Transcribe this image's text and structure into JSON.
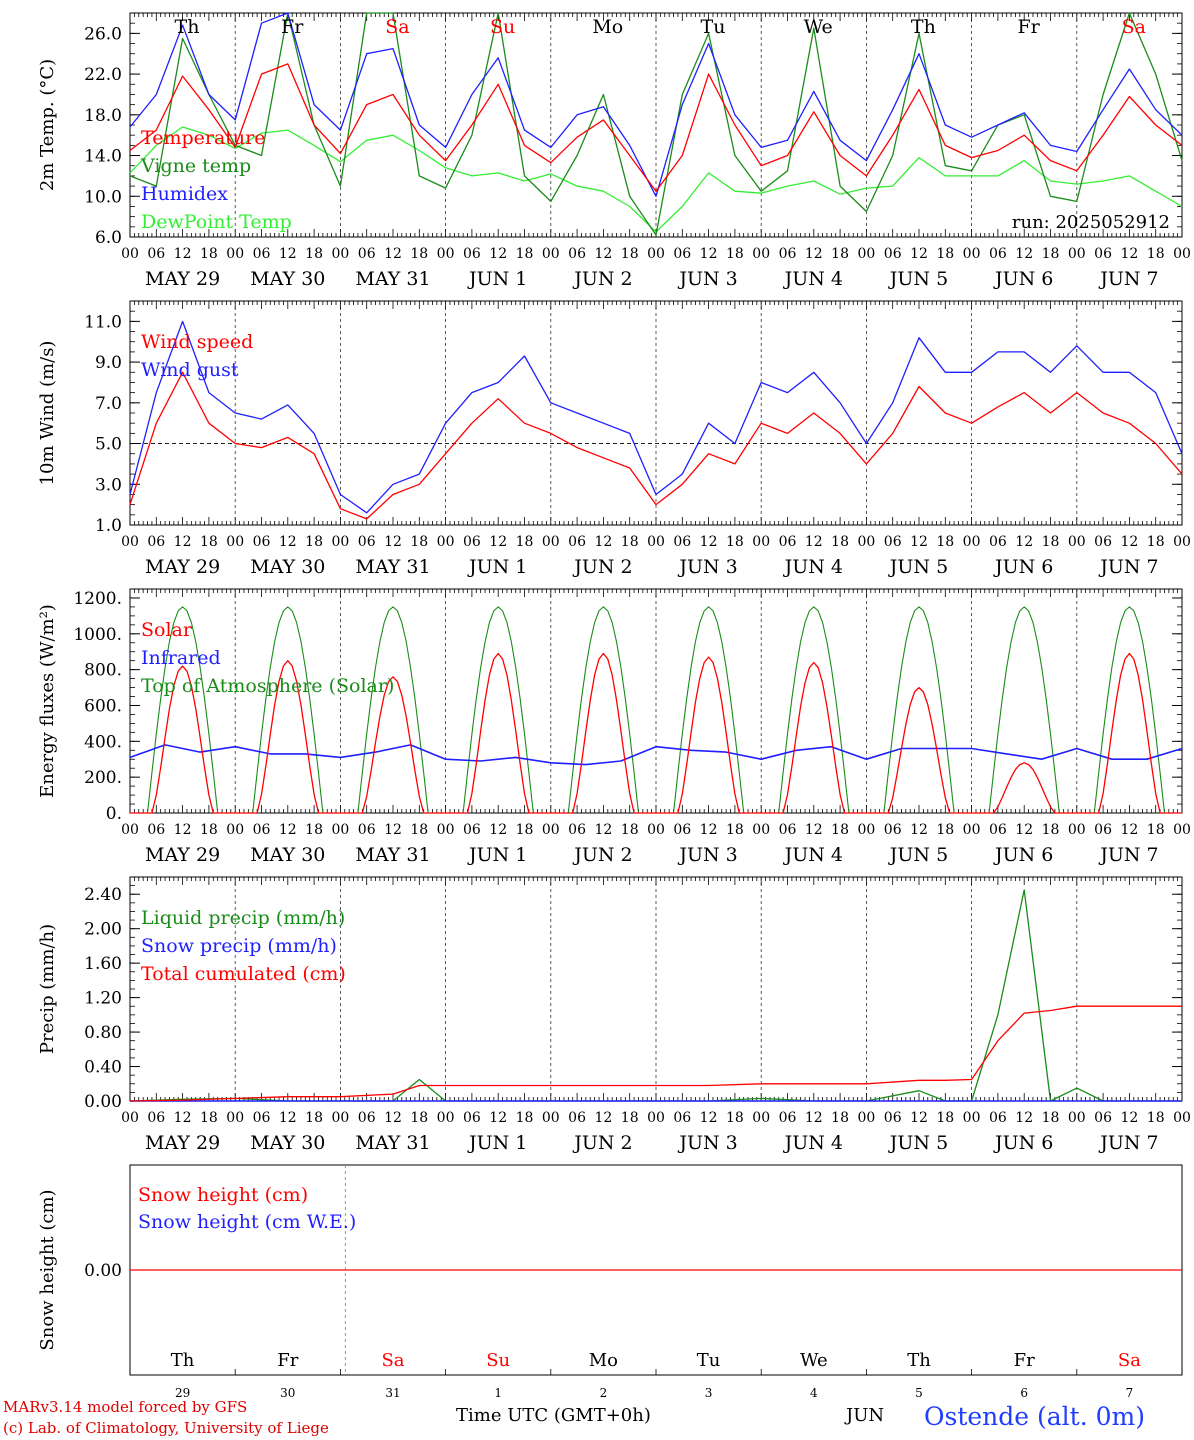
{
  "run_label": "run: 2025052912",
  "hour_ticks": [
    "00",
    "06",
    "12",
    "18"
  ],
  "last_hour_tick": "00",
  "dates": [
    "MAY 29",
    "MAY 30",
    "MAY 31",
    "JUN  1",
    "JUN  2",
    "JUN  3",
    "JUN  4",
    "JUN  5",
    "JUN  6",
    "JUN  7"
  ],
  "weekdays": [
    "Th",
    "Fr",
    "Sa",
    "Su",
    "Mo",
    "Tu",
    "We",
    "Th",
    "Fr",
    "Sa"
  ],
  "weekend_flags": [
    false,
    false,
    true,
    true,
    false,
    false,
    false,
    false,
    false,
    true
  ],
  "day_numbers": [
    "29",
    "30",
    "31",
    "1",
    "2",
    "3",
    "4",
    "5",
    "6",
    "7"
  ],
  "bottom_month": "JUN",
  "x_axis_title": "Time UTC (GMT+0h)",
  "footer": {
    "model": "MARv3.14 model forced by GFS",
    "credit": "(c) Lab. of Climatology, University of Liege",
    "station": "Ostende (alt. 0m)"
  },
  "colors": {
    "red": "#ff0000",
    "green": "#1a8c1a",
    "blue": "#1f1fff",
    "lightgreen": "#33ee33",
    "weekend": "#ff0000"
  },
  "chart_data": [
    {
      "type": "line",
      "ylabel": "2m Temp. (°C)",
      "ylim": [
        6,
        28
      ],
      "yticks": [
        6,
        10,
        14,
        18,
        22,
        26
      ],
      "ytick_labels": [
        "6.0",
        "10.0",
        "14.0",
        "18.0",
        "22.0",
        "26.0"
      ],
      "x": [
        0,
        6,
        12,
        18,
        24,
        30,
        36,
        42,
        48,
        54,
        60,
        66,
        72,
        78,
        84,
        90,
        96,
        102,
        108,
        114,
        120,
        126,
        132,
        138,
        144,
        150,
        156,
        162,
        168,
        174,
        180,
        186,
        192,
        198,
        204,
        210,
        216,
        222,
        228,
        234,
        240
      ],
      "series": [
        {
          "name": "Temperature",
          "color": "red",
          "values": [
            14.5,
            16.5,
            21.8,
            18.5,
            14.8,
            22.0,
            23.0,
            17.0,
            14.2,
            19.0,
            20.0,
            16.0,
            13.5,
            17.0,
            21.0,
            15.0,
            13.3,
            15.8,
            17.5,
            14.0,
            10.5,
            14.0,
            22.0,
            17.0,
            13.0,
            14.0,
            18.3,
            14.0,
            12.0,
            16.0,
            20.5,
            15.0,
            13.8,
            14.5,
            16.0,
            13.5,
            12.5,
            16.0,
            19.8,
            17.0,
            15.0
          ]
        },
        {
          "name": "Vigne temp",
          "color": "green",
          "values": [
            12.0,
            11.0,
            25.5,
            20.0,
            15.0,
            14.0,
            28.0,
            17.0,
            11.0,
            28.0,
            28.0,
            12.0,
            10.8,
            16.0,
            28.0,
            12.0,
            9.5,
            14.0,
            20.0,
            10.0,
            6.2,
            20.0,
            26.0,
            14.0,
            10.5,
            12.5,
            26.5,
            11.0,
            8.5,
            14.0,
            26.0,
            13.0,
            12.5,
            17.0,
            18.0,
            10.0,
            9.5,
            20.0,
            28.0,
            22.0,
            13.5
          ]
        },
        {
          "name": "Humidex",
          "color": "blue",
          "values": [
            16.8,
            20.0,
            26.8,
            20.0,
            17.5,
            27.0,
            28.0,
            19.0,
            16.5,
            24.0,
            24.5,
            17.0,
            14.8,
            20.0,
            23.6,
            16.5,
            14.8,
            18.0,
            18.8,
            15.0,
            10.0,
            19.0,
            25.0,
            18.0,
            14.8,
            15.5,
            20.3,
            15.5,
            13.5,
            18.5,
            24.0,
            17.0,
            15.8,
            17.0,
            18.2,
            15.0,
            14.4,
            18.5,
            22.5,
            18.5,
            16.0
          ]
        },
        {
          "name": "DewPoint Temp",
          "color": "lightgreen",
          "values": [
            12.3,
            15.0,
            16.8,
            16.0,
            14.7,
            16.2,
            16.5,
            15.0,
            13.4,
            15.5,
            16.0,
            14.5,
            12.8,
            12.0,
            12.3,
            11.5,
            12.2,
            11.0,
            10.5,
            9.0,
            6.5,
            9.0,
            12.3,
            10.5,
            10.3,
            11.0,
            11.5,
            10.2,
            10.8,
            11.0,
            13.8,
            12.0,
            12.0,
            12.0,
            13.5,
            11.5,
            11.2,
            11.5,
            12.0,
            10.5,
            9.0
          ]
        }
      ],
      "legend": "top-left"
    },
    {
      "type": "line",
      "ylabel": "10m Wind (m/s)",
      "ylim": [
        1,
        12
      ],
      "yticks": [
        1,
        3,
        5,
        7,
        9,
        11
      ],
      "ytick_labels": [
        "1.0",
        "3.0",
        "5.0",
        "7.0",
        "9.0",
        "11.0"
      ],
      "reference_line": 5,
      "x": [
        0,
        6,
        12,
        18,
        24,
        30,
        36,
        42,
        48,
        54,
        60,
        66,
        72,
        78,
        84,
        90,
        96,
        102,
        108,
        114,
        120,
        126,
        132,
        138,
        144,
        150,
        156,
        162,
        168,
        174,
        180,
        186,
        192,
        198,
        204,
        210,
        216,
        222,
        228,
        234,
        240
      ],
      "series": [
        {
          "name": "Wind speed",
          "color": "red",
          "values": [
            2.0,
            6.0,
            8.5,
            6.0,
            5.0,
            4.8,
            5.3,
            4.5,
            1.8,
            1.3,
            2.5,
            3.0,
            4.5,
            6.0,
            7.2,
            6.0,
            5.5,
            4.8,
            4.3,
            3.8,
            2.0,
            3.0,
            4.5,
            4.0,
            6.0,
            5.5,
            6.5,
            5.5,
            4.0,
            5.5,
            7.8,
            6.5,
            6.0,
            6.8,
            7.5,
            6.5,
            7.5,
            6.5,
            6.0,
            5.0,
            3.5
          ]
        },
        {
          "name": "Wind gust",
          "color": "blue",
          "values": [
            2.5,
            7.5,
            11.0,
            7.5,
            6.5,
            6.2,
            6.9,
            5.5,
            2.5,
            1.6,
            3.0,
            3.5,
            6.0,
            7.5,
            8.0,
            9.3,
            7.0,
            6.5,
            6.0,
            5.5,
            2.5,
            3.5,
            6.0,
            5.0,
            8.0,
            7.5,
            8.5,
            7.0,
            5.0,
            7.0,
            10.2,
            8.5,
            8.5,
            9.5,
            9.5,
            8.5,
            9.8,
            8.5,
            8.5,
            7.5,
            4.5
          ]
        }
      ],
      "legend": "top-left"
    },
    {
      "type": "line",
      "ylabel": "Energy fluxes (W/m²)",
      "ylim": [
        0,
        1250
      ],
      "yticks": [
        0,
        200,
        400,
        600,
        800,
        1000,
        1200
      ],
      "ytick_labels": [
        "0.",
        "200.",
        "400.",
        "600.",
        "800.",
        "1000.",
        "1200."
      ],
      "solar_peaks": [
        820,
        850,
        760,
        890,
        890,
        870,
        840,
        700,
        280,
        890
      ],
      "toa_peak": 1150,
      "infrared": [
        310,
        380,
        340,
        370,
        330,
        330,
        310,
        340,
        380,
        300,
        290,
        310,
        280,
        270,
        290,
        370,
        350,
        340,
        300,
        350,
        370,
        300,
        360,
        360,
        360,
        330,
        300,
        360,
        300,
        300,
        360
      ],
      "series": [
        {
          "name": "Solar",
          "color": "red"
        },
        {
          "name": "Infrared",
          "color": "blue"
        },
        {
          "name": "Top of Atmosphere (Solar)",
          "color": "green"
        }
      ],
      "legend": "top-left"
    },
    {
      "type": "line",
      "ylabel": "Precip (mm/h)",
      "ylim": [
        0,
        2.6
      ],
      "yticks": [
        0,
        0.4,
        0.8,
        1.2,
        1.6,
        2.0,
        2.4
      ],
      "ytick_labels": [
        "0.00",
        "0.40",
        "0.80",
        "1.20",
        "1.60",
        "2.00",
        "2.40"
      ],
      "x": [
        0,
        12,
        24,
        36,
        48,
        60,
        66,
        72,
        84,
        96,
        108,
        120,
        132,
        144,
        156,
        168,
        180,
        186,
        192,
        198,
        204,
        210,
        216,
        222,
        228,
        240
      ],
      "series": [
        {
          "name": "Liquid precip (mm/h)",
          "color": "green",
          "values": [
            0,
            0.02,
            0.03,
            0,
            0,
            0,
            0.25,
            0,
            0,
            0,
            0,
            0,
            0,
            0.03,
            0,
            0,
            0.12,
            0,
            0,
            1.0,
            2.45,
            0,
            0.15,
            0,
            0,
            0
          ]
        },
        {
          "name": "Snow precip (mm/h)",
          "color": "blue",
          "values": [
            0,
            0,
            0,
            0,
            0,
            0,
            0,
            0,
            0,
            0,
            0,
            0,
            0,
            0,
            0,
            0,
            0,
            0,
            0,
            0,
            0,
            0,
            0,
            0,
            0,
            0
          ]
        },
        {
          "name": "Total cumulated (cm)",
          "color": "red",
          "values": [
            0,
            0.01,
            0.03,
            0.05,
            0.05,
            0.08,
            0.18,
            0.18,
            0.18,
            0.18,
            0.18,
            0.18,
            0.18,
            0.2,
            0.2,
            0.2,
            0.24,
            0.24,
            0.25,
            0.7,
            1.02,
            1.05,
            1.1,
            1.1,
            1.1,
            1.1
          ]
        }
      ],
      "legend": "top-left"
    },
    {
      "type": "line",
      "ylabel": "Snow height (cm)",
      "ytick_labels": [
        "0.00"
      ],
      "series": [
        {
          "name": "Snow height (cm)",
          "color": "red",
          "values": [
            0,
            0
          ]
        },
        {
          "name": "Snow height (cm W.E.)",
          "color": "blue",
          "values": [
            0,
            0
          ]
        }
      ],
      "legend": "top-left"
    }
  ]
}
